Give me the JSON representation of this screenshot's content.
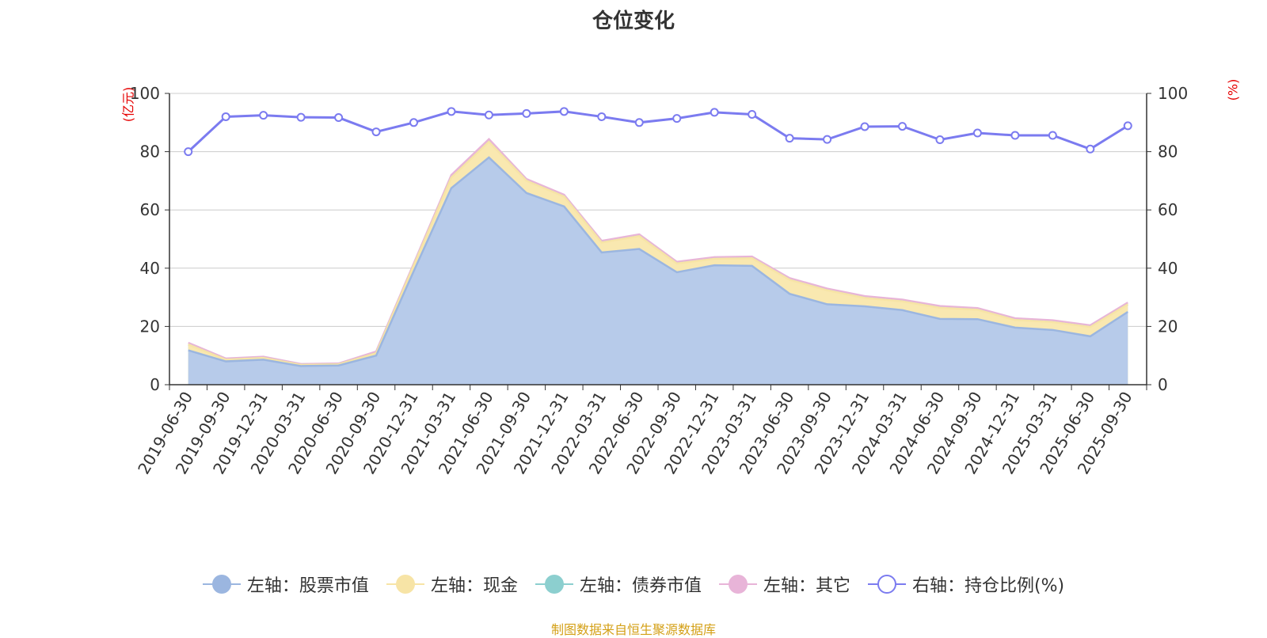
{
  "chart_data": {
    "type": "area",
    "title": "仓位变化",
    "left_axis_unit": "(亿元)",
    "right_axis_unit": "(%)",
    "ylim_left": [
      0,
      100
    ],
    "ylim_right": [
      0,
      100
    ],
    "y_ticks": [
      0,
      20,
      40,
      60,
      80,
      100
    ],
    "categories": [
      "2019-06-30",
      "2019-09-30",
      "2019-12-31",
      "2020-03-31",
      "2020-06-30",
      "2020-09-30",
      "2020-12-31",
      "2021-03-31",
      "2021-06-30",
      "2021-09-30",
      "2021-12-31",
      "2022-03-31",
      "2022-06-30",
      "2022-09-30",
      "2022-12-31",
      "2023-03-31",
      "2023-06-30",
      "2023-09-30",
      "2023-12-31",
      "2024-03-31",
      "2024-06-30",
      "2024-09-30",
      "2024-12-31",
      "2025-03-31",
      "2025-06-30",
      "2025-09-30"
    ],
    "series": [
      {
        "name": "左轴：股票市值",
        "axis": "left",
        "stacked": true,
        "color": "#9bb6e0",
        "values": [
          11.8,
          8.0,
          8.6,
          6.4,
          6.6,
          10.0,
          39.0,
          67.5,
          78.0,
          65.8,
          61.2,
          45.4,
          46.6,
          38.6,
          41.0,
          40.8,
          31.2,
          27.6,
          26.9,
          25.6,
          22.6,
          22.5,
          19.6,
          18.8,
          16.6,
          25.0
        ]
      },
      {
        "name": "左轴：现金",
        "axis": "left",
        "stacked": true,
        "color": "#f7e4a6",
        "values": [
          2.0,
          0.6,
          0.6,
          0.4,
          0.4,
          0.8,
          2.0,
          3.6,
          5.4,
          4.2,
          3.4,
          3.4,
          4.4,
          3.0,
          2.2,
          2.6,
          4.8,
          4.8,
          2.9,
          3.0,
          3.8,
          3.2,
          2.6,
          2.7,
          3.2,
          2.6
        ]
      },
      {
        "name": "左轴：债券市值",
        "axis": "left",
        "stacked": true,
        "color": "#8ccfcf",
        "values": [
          0,
          0,
          0,
          0,
          0,
          0,
          0,
          0,
          0,
          0,
          0,
          0,
          0,
          0,
          0,
          0,
          0,
          0,
          0,
          0,
          0,
          0,
          0,
          0,
          0,
          0
        ]
      },
      {
        "name": "左轴：其它",
        "axis": "left",
        "stacked": true,
        "color": "#e8b4d8",
        "values": [
          0.6,
          0.4,
          0.4,
          0.3,
          0.3,
          0.6,
          0.6,
          0.9,
          0.9,
          0.6,
          0.6,
          0.6,
          0.6,
          0.6,
          0.6,
          0.6,
          0.6,
          0.6,
          0.6,
          0.6,
          0.6,
          0.6,
          0.6,
          0.6,
          0.6,
          0.6
        ]
      },
      {
        "name": "右轴：持仓比例(%)",
        "axis": "right",
        "stacked": false,
        "color": "#7b7bf0",
        "values": [
          80.0,
          92.0,
          92.5,
          91.8,
          91.7,
          86.8,
          90.0,
          93.8,
          92.6,
          93.1,
          93.8,
          92.0,
          90.0,
          91.4,
          93.5,
          92.8,
          84.6,
          84.2,
          88.6,
          88.7,
          84.1,
          86.4,
          85.6,
          85.6,
          80.9,
          88.9
        ]
      }
    ]
  },
  "legend": [
    {
      "label": "左轴：股票市值",
      "color": "#9bb6e0",
      "style": "filled"
    },
    {
      "label": "左轴：现金",
      "color": "#f7e4a6",
      "style": "filled"
    },
    {
      "label": "左轴：债券市值",
      "color": "#8ccfcf",
      "style": "filled"
    },
    {
      "label": "左轴：其它",
      "color": "#e8b4d8",
      "style": "filled"
    },
    {
      "label": "右轴：持仓比例(%)",
      "color": "#7b7bf0",
      "style": "hollow"
    }
  ],
  "source": "制图数据来自恒生聚源数据库"
}
